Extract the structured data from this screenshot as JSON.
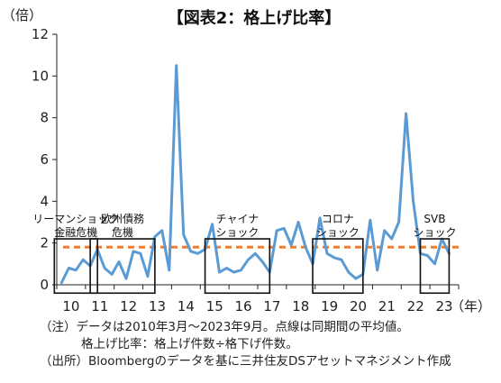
{
  "chart_data": {
    "type": "line",
    "title": "【図表2：格上げ比率】",
    "ylabel": "（倍）",
    "xlabel": "（年）",
    "ylim": [
      0,
      12
    ],
    "yticks": [
      "0",
      "2",
      "4",
      "6",
      "8",
      "10",
      "12"
    ],
    "xtick_labels": [
      "10",
      "11",
      "12",
      "13",
      "14",
      "15",
      "16",
      "17",
      "18",
      "19",
      "20",
      "21",
      "22",
      "23"
    ],
    "grid": false,
    "x": [
      "2010-03",
      "2010-06",
      "2010-09",
      "2010-12",
      "2011-03",
      "2011-06",
      "2011-09",
      "2011-12",
      "2012-03",
      "2012-06",
      "2012-09",
      "2012-12",
      "2013-03",
      "2013-06",
      "2013-09",
      "2013-12",
      "2014-03",
      "2014-06",
      "2014-09",
      "2014-12",
      "2015-03",
      "2015-06",
      "2015-09",
      "2015-12",
      "2016-03",
      "2016-06",
      "2016-09",
      "2016-12",
      "2017-03",
      "2017-06",
      "2017-09",
      "2017-12",
      "2018-03",
      "2018-06",
      "2018-09",
      "2018-12",
      "2019-03",
      "2019-06",
      "2019-09",
      "2019-12",
      "2020-03",
      "2020-06",
      "2020-09",
      "2020-12",
      "2021-03",
      "2021-06",
      "2021-09",
      "2021-12",
      "2022-03",
      "2022-06",
      "2022-09",
      "2022-12",
      "2023-03",
      "2023-06",
      "2023-09"
    ],
    "series": [
      {
        "color": "#5b9bd5",
        "values": [
          0.1,
          0.8,
          0.7,
          1.2,
          0.9,
          1.7,
          0.8,
          0.5,
          1.1,
          0.3,
          1.6,
          1.5,
          0.4,
          2.3,
          2.6,
          0.7,
          10.5,
          2.4,
          1.6,
          1.5,
          1.7,
          2.9,
          0.6,
          0.8,
          0.6,
          0.7,
          1.2,
          1.5,
          1.1,
          0.6,
          2.6,
          2.7,
          1.9,
          3.0,
          1.8,
          1.0,
          3.2,
          1.5,
          1.3,
          1.2,
          0.6,
          0.3,
          0.5,
          3.1,
          0.7,
          2.6,
          2.2,
          3.0,
          8.2,
          4.0,
          1.5,
          1.4,
          1.0,
          2.2,
          1.5
        ]
      },
      {
        "type": "reference-line",
        "style": "dashed",
        "color": "#ed7d31",
        "value": 1.8
      }
    ],
    "annotations": [
      {
        "lines": [
          "リーマンショック",
          "金融危機"
        ],
        "from": "2010-03",
        "to": "2011-03"
      },
      {
        "lines": [
          "欧州債務",
          "危機"
        ],
        "from": "2011-06",
        "to": "2013-03"
      },
      {
        "lines": [
          "チャイナ",
          "ショック"
        ],
        "from": "2015-06",
        "to": "2017-03"
      },
      {
        "lines": [
          "コロナ",
          "ショック"
        ],
        "from": "2019-03",
        "to": "2020-06"
      },
      {
        "lines": [
          "SVB",
          "ショック"
        ],
        "from": "2022-12",
        "to": "2023-06"
      }
    ]
  },
  "notes": {
    "line1": "（注）データは2010年3月～2023年9月。点線は同期間の平均値。",
    "line2": "格上げ比率：格上げ件数÷格下げ件数。",
    "line3": "（出所）Bloombergのデータを基に三井住友DSアセットマネジメント作成"
  }
}
